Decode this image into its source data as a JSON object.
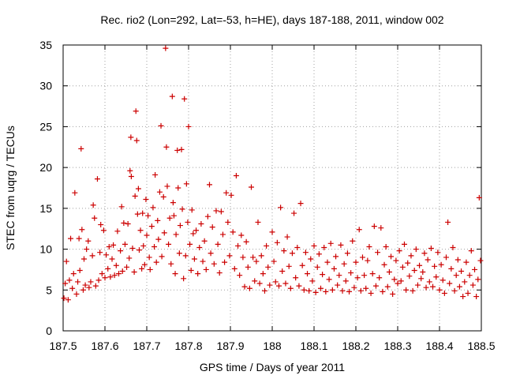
{
  "chart_data": {
    "type": "scatter",
    "title": "Rec. rio2 (Lon=292, Lat=-53, h=HE), days 187-188, 2011, window 002",
    "xlabel": "GPS time / Days of year 2011",
    "ylabel": "STEC from uqrg / TECUs",
    "xlim": [
      187.5,
      188.5
    ],
    "ylim": [
      0,
      35
    ],
    "grid": true,
    "legend": "none",
    "marker": "plus",
    "color": "#cc0000",
    "xticks": [
      187.5,
      187.6,
      187.7,
      187.8,
      187.9,
      188.0,
      188.1,
      188.2,
      188.3,
      188.4,
      188.5
    ],
    "xtick_labels": [
      "187.5",
      "187.6",
      "187.7",
      "187.8",
      "187.9",
      "188",
      "188.1",
      "188.2",
      "188.3",
      "188.4",
      "188.5"
    ],
    "yticks": [
      0,
      5,
      10,
      15,
      20,
      25,
      30,
      35
    ],
    "ytick_labels": [
      "0",
      "5",
      "10",
      "15",
      "20",
      "25",
      "30",
      "35"
    ],
    "series": [
      {
        "name": "STEC",
        "points": [
          [
            187.502,
            4.0
          ],
          [
            187.505,
            5.8
          ],
          [
            187.508,
            8.5
          ],
          [
            187.512,
            3.8
          ],
          [
            187.515,
            6.2
          ],
          [
            187.518,
            11.3
          ],
          [
            187.522,
            5.2
          ],
          [
            187.525,
            7.0
          ],
          [
            187.528,
            16.9
          ],
          [
            187.532,
            4.5
          ],
          [
            187.535,
            6.0
          ],
          [
            187.538,
            11.3
          ],
          [
            187.54,
            7.4
          ],
          [
            187.543,
            22.3
          ],
          [
            187.545,
            12.4
          ],
          [
            187.548,
            5.0
          ],
          [
            187.55,
            8.8
          ],
          [
            187.553,
            5.6
          ],
          [
            187.556,
            10.0
          ],
          [
            187.56,
            11.0
          ],
          [
            187.562,
            5.3
          ],
          [
            187.566,
            6.0
          ],
          [
            187.57,
            9.2
          ],
          [
            187.572,
            15.4
          ],
          [
            187.575,
            13.8
          ],
          [
            187.578,
            5.5
          ],
          [
            187.582,
            18.6
          ],
          [
            187.585,
            6.2
          ],
          [
            187.588,
            9.6
          ],
          [
            187.59,
            13.0
          ],
          [
            187.593,
            7.0
          ],
          [
            187.597,
            12.3
          ],
          [
            187.6,
            6.5
          ],
          [
            187.603,
            9.3
          ],
          [
            187.607,
            7.6
          ],
          [
            187.61,
            10.3
          ],
          [
            187.613,
            6.6
          ],
          [
            187.617,
            8.8
          ],
          [
            187.62,
            10.5
          ],
          [
            187.623,
            6.8
          ],
          [
            187.627,
            8.0
          ],
          [
            187.63,
            12.2
          ],
          [
            187.633,
            7.0
          ],
          [
            187.637,
            9.8
          ],
          [
            187.64,
            15.2
          ],
          [
            187.642,
            7.3
          ],
          [
            187.645,
            13.2
          ],
          [
            187.648,
            10.6
          ],
          [
            187.652,
            7.8
          ],
          [
            187.655,
            13.1
          ],
          [
            187.658,
            8.9
          ],
          [
            187.66,
            19.6
          ],
          [
            187.662,
            23.7
          ],
          [
            187.663,
            18.9
          ],
          [
            187.666,
            10.1
          ],
          [
            187.67,
            7.2
          ],
          [
            187.672,
            16.5
          ],
          [
            187.674,
            26.9
          ],
          [
            187.676,
            23.3
          ],
          [
            187.678,
            14.3
          ],
          [
            187.68,
            17.4
          ],
          [
            187.682,
            9.9
          ],
          [
            187.685,
            12.3
          ],
          [
            187.688,
            7.6
          ],
          [
            187.69,
            14.4
          ],
          [
            187.692,
            10.4
          ],
          [
            187.695,
            8.1
          ],
          [
            187.698,
            16.1
          ],
          [
            187.7,
            11.7
          ],
          [
            187.703,
            14.1
          ],
          [
            187.706,
            9.0
          ],
          [
            187.708,
            7.5
          ],
          [
            187.712,
            12.8
          ],
          [
            187.715,
            15.1
          ],
          [
            187.718,
            10.3
          ],
          [
            187.72,
            19.1
          ],
          [
            187.723,
            8.4
          ],
          [
            187.726,
            13.5
          ],
          [
            187.728,
            11.2
          ],
          [
            187.731,
            17.0
          ],
          [
            187.734,
            25.1
          ],
          [
            187.736,
            9.1
          ],
          [
            187.74,
            16.4
          ],
          [
            187.742,
            12.0
          ],
          [
            187.745,
            34.6
          ],
          [
            187.747,
            22.5
          ],
          [
            187.749,
            17.7
          ],
          [
            187.752,
            10.6
          ],
          [
            187.755,
            13.8
          ],
          [
            187.758,
            8.2
          ],
          [
            187.761,
            28.7
          ],
          [
            187.763,
            15.7
          ],
          [
            187.765,
            14.1
          ],
          [
            187.768,
            7.0
          ],
          [
            187.77,
            11.8
          ],
          [
            187.773,
            22.1
          ],
          [
            187.775,
            17.5
          ],
          [
            187.778,
            9.5
          ],
          [
            187.78,
            12.9
          ],
          [
            187.783,
            22.2
          ],
          [
            187.785,
            14.9
          ],
          [
            187.788,
            6.4
          ],
          [
            187.79,
            28.4
          ],
          [
            187.793,
            9.2
          ],
          [
            187.795,
            18.0
          ],
          [
            187.798,
            13.3
          ],
          [
            187.8,
            25.0
          ],
          [
            187.803,
            10.6
          ],
          [
            187.806,
            7.4
          ],
          [
            187.808,
            14.8
          ],
          [
            187.811,
            11.9
          ],
          [
            187.814,
            8.8
          ],
          [
            187.818,
            12.3
          ],
          [
            187.822,
            7.0
          ],
          [
            187.826,
            10.2
          ],
          [
            187.83,
            13.1
          ],
          [
            187.834,
            8.5
          ],
          [
            187.838,
            11.0
          ],
          [
            187.842,
            7.5
          ],
          [
            187.846,
            14.0
          ],
          [
            187.85,
            17.9
          ],
          [
            187.853,
            9.5
          ],
          [
            187.857,
            12.7
          ],
          [
            187.861,
            8.2
          ],
          [
            187.866,
            14.7
          ],
          [
            187.87,
            10.6
          ],
          [
            187.874,
            7.1
          ],
          [
            187.878,
            14.6
          ],
          [
            187.882,
            11.8
          ],
          [
            187.886,
            8.4
          ],
          [
            187.89,
            16.9
          ],
          [
            187.894,
            13.3
          ],
          [
            187.898,
            9.2
          ],
          [
            187.902,
            16.6
          ],
          [
            187.906,
            12.1
          ],
          [
            187.91,
            7.6
          ],
          [
            187.914,
            19.0
          ],
          [
            187.918,
            10.4
          ],
          [
            187.922,
            6.8
          ],
          [
            187.926,
            11.7
          ],
          [
            187.93,
            9.0
          ],
          [
            187.934,
            5.4
          ],
          [
            187.938,
            10.9
          ],
          [
            187.942,
            7.8
          ],
          [
            187.946,
            5.2
          ],
          [
            187.95,
            17.6
          ],
          [
            187.954,
            9.0
          ],
          [
            187.958,
            6.1
          ],
          [
            187.962,
            8.5
          ],
          [
            187.966,
            13.3
          ],
          [
            187.97,
            5.8
          ],
          [
            187.974,
            9.2
          ],
          [
            187.978,
            7.0
          ],
          [
            187.982,
            4.9
          ],
          [
            187.986,
            10.4
          ],
          [
            187.99,
            7.8
          ],
          [
            187.994,
            5.6
          ],
          [
            188.0,
            12.1
          ],
          [
            188.004,
            8.5
          ],
          [
            188.008,
            6.0
          ],
          [
            188.012,
            10.8
          ],
          [
            188.016,
            5.5
          ],
          [
            188.02,
            15.1
          ],
          [
            188.024,
            7.3
          ],
          [
            188.028,
            9.8
          ],
          [
            188.032,
            5.8
          ],
          [
            188.036,
            11.5
          ],
          [
            188.04,
            7.9
          ],
          [
            188.044,
            5.2
          ],
          [
            188.048,
            9.5
          ],
          [
            188.052,
            14.4
          ],
          [
            188.056,
            6.5
          ],
          [
            188.06,
            10.2
          ],
          [
            188.064,
            5.5
          ],
          [
            188.068,
            15.6
          ],
          [
            188.072,
            8.0
          ],
          [
            188.076,
            5.0
          ],
          [
            188.08,
            9.6
          ],
          [
            188.084,
            7.0
          ],
          [
            188.088,
            4.9
          ],
          [
            188.092,
            8.8
          ],
          [
            188.096,
            6.1
          ],
          [
            188.1,
            10.4
          ],
          [
            188.104,
            4.7
          ],
          [
            188.108,
            7.8
          ],
          [
            188.112,
            9.4
          ],
          [
            188.116,
            5.2
          ],
          [
            188.12,
            6.9
          ],
          [
            188.124,
            10.2
          ],
          [
            188.128,
            4.8
          ],
          [
            188.132,
            8.4
          ],
          [
            188.136,
            6.3
          ],
          [
            188.14,
            10.7
          ],
          [
            188.144,
            5.0
          ],
          [
            188.148,
            7.6
          ],
          [
            188.152,
            9.1
          ],
          [
            188.156,
            5.6
          ],
          [
            188.16,
            6.8
          ],
          [
            188.164,
            10.5
          ],
          [
            188.168,
            4.9
          ],
          [
            188.172,
            8.2
          ],
          [
            188.176,
            6.1
          ],
          [
            188.18,
            9.5
          ],
          [
            188.184,
            4.8
          ],
          [
            188.188,
            7.1
          ],
          [
            188.192,
            11.0
          ],
          [
            188.196,
            5.3
          ],
          [
            188.2,
            8.4
          ],
          [
            188.204,
            6.5
          ],
          [
            188.208,
            12.4
          ],
          [
            188.212,
            4.9
          ],
          [
            188.216,
            9.0
          ],
          [
            188.22,
            6.8
          ],
          [
            188.224,
            5.2
          ],
          [
            188.228,
            8.6
          ],
          [
            188.232,
            10.3
          ],
          [
            188.236,
            4.6
          ],
          [
            188.24,
            7.0
          ],
          [
            188.244,
            12.8
          ],
          [
            188.248,
            5.5
          ],
          [
            188.252,
            9.6
          ],
          [
            188.256,
            6.5
          ],
          [
            188.26,
            12.6
          ],
          [
            188.264,
            4.8
          ],
          [
            188.268,
            8.1
          ],
          [
            188.272,
            10.3
          ],
          [
            188.276,
            5.4
          ],
          [
            188.28,
            7.2
          ],
          [
            188.284,
            9.1
          ],
          [
            188.288,
            4.5
          ],
          [
            188.292,
            6.3
          ],
          [
            188.296,
            8.6
          ],
          [
            188.3,
            5.8
          ],
          [
            188.304,
            9.8
          ],
          [
            188.308,
            6.1
          ],
          [
            188.312,
            7.8
          ],
          [
            188.316,
            10.6
          ],
          [
            188.32,
            5.0
          ],
          [
            188.324,
            8.3
          ],
          [
            188.328,
            6.7
          ],
          [
            188.332,
            9.2
          ],
          [
            188.336,
            4.9
          ],
          [
            188.34,
            7.4
          ],
          [
            188.344,
            10.0
          ],
          [
            188.348,
            5.6
          ],
          [
            188.352,
            8.0
          ],
          [
            188.356,
            6.4
          ],
          [
            188.36,
            7.2
          ],
          [
            188.364,
            9.5
          ],
          [
            188.368,
            5.3
          ],
          [
            188.372,
            8.7
          ],
          [
            188.376,
            6.0
          ],
          [
            188.38,
            10.1
          ],
          [
            188.384,
            5.4
          ],
          [
            188.388,
            7.9
          ],
          [
            188.392,
            6.6
          ],
          [
            188.396,
            9.6
          ],
          [
            188.4,
            5.0
          ],
          [
            188.404,
            8.1
          ],
          [
            188.408,
            6.2
          ],
          [
            188.412,
            4.6
          ],
          [
            188.416,
            9.0
          ],
          [
            188.42,
            13.3
          ],
          [
            188.424,
            5.8
          ],
          [
            188.428,
            7.6
          ],
          [
            188.432,
            10.2
          ],
          [
            188.436,
            4.9
          ],
          [
            188.44,
            6.8
          ],
          [
            188.444,
            8.7
          ],
          [
            188.448,
            5.4
          ],
          [
            188.452,
            7.3
          ],
          [
            188.456,
            4.2
          ],
          [
            188.46,
            6.0
          ],
          [
            188.464,
            8.4
          ],
          [
            188.468,
            4.6
          ],
          [
            188.472,
            6.8
          ],
          [
            188.476,
            9.8
          ],
          [
            188.48,
            5.6
          ],
          [
            188.484,
            7.5
          ],
          [
            188.488,
            4.2
          ],
          [
            188.492,
            6.3
          ],
          [
            188.495,
            16.3
          ],
          [
            188.498,
            8.6
          ]
        ]
      }
    ]
  }
}
